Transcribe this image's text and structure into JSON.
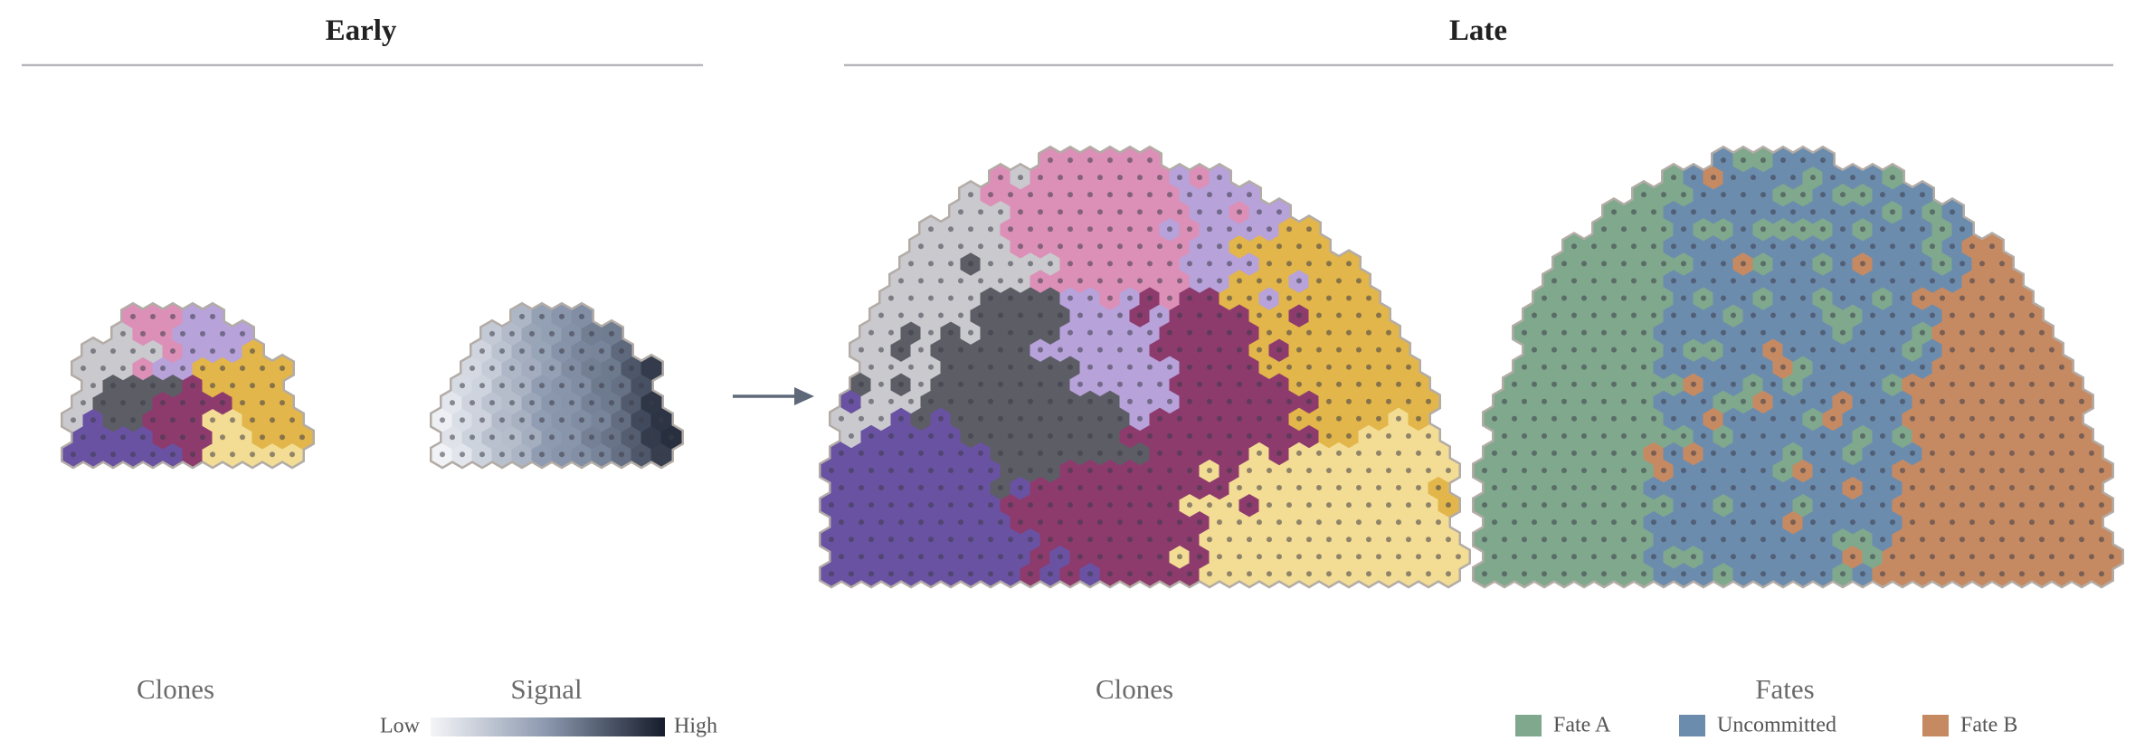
{
  "panels": [
    {
      "title": "Early",
      "figures": [
        {
          "label": "Clones"
        },
        {
          "label": "Signal",
          "colorbar": {
            "low": "Low",
            "high": "High"
          }
        }
      ]
    },
    {
      "title": "Late",
      "figures": [
        {
          "label": "Clones"
        },
        {
          "label": "Fates",
          "legend": [
            {
              "label": "Fate A",
              "color": "#7fa88d"
            },
            {
              "label": "Uncommitted",
              "color": "#6c8cae"
            },
            {
              "label": "Fate B",
              "color": "#c68a62"
            }
          ]
        }
      ]
    }
  ]
}
